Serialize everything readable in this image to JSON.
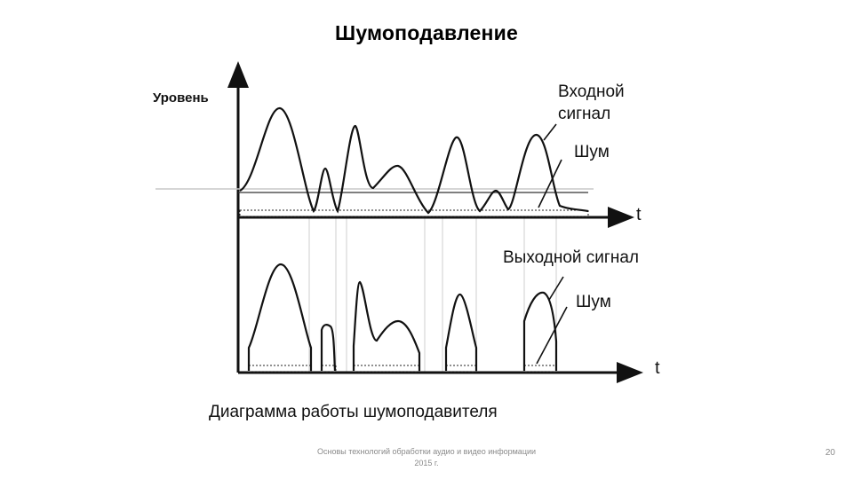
{
  "slide": {
    "title": "Шумоподавление",
    "footer_line1": "Основы технологий обработки аудио и видео информации",
    "footer_line2": "2015 г.",
    "page_number": "20"
  },
  "diagram": {
    "y_axis_label": "Уровень",
    "top_t_label": "t",
    "bottom_t_label": "t",
    "input_label_line1": "Входной",
    "input_label_line2": "сигнал",
    "noise_label_top": "Шум",
    "output_label": "Выходной сигнал",
    "noise_label_bottom": "Шум",
    "caption": "Диаграмма работы шумоподавителя"
  },
  "colors": {
    "ink": "#111111",
    "footer": "#8a8a8a",
    "background": "#ffffff"
  }
}
